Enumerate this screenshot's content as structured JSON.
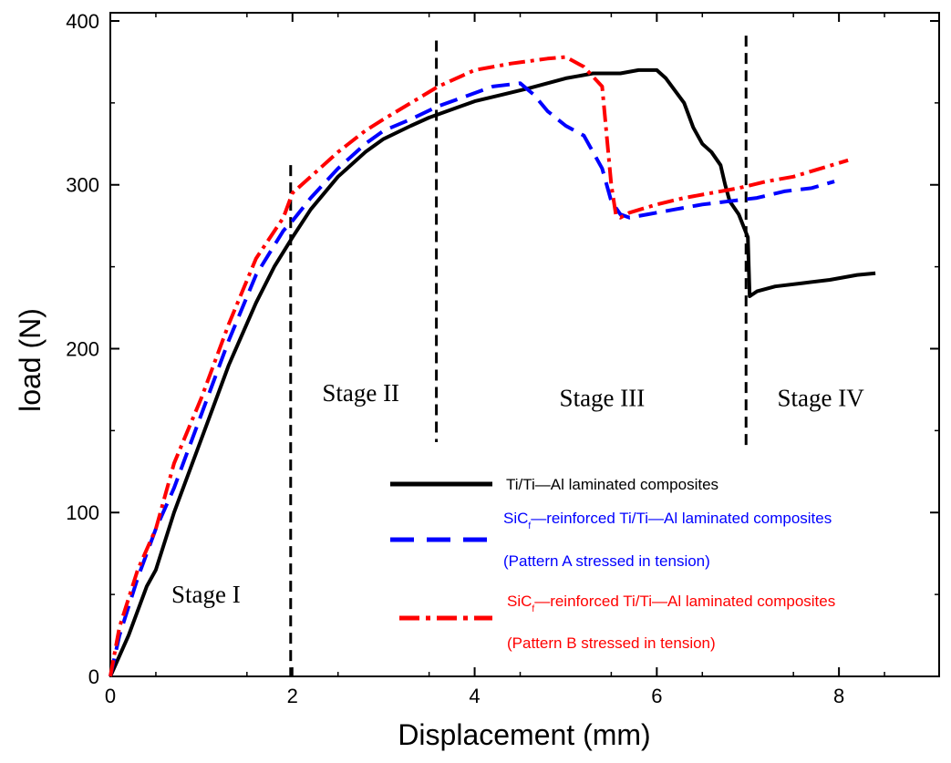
{
  "chart_data": {
    "type": "line",
    "title": "",
    "xlabel": "Displacement (mm)",
    "ylabel": "load (N)",
    "xlim": [
      0,
      9.1
    ],
    "ylim": [
      0,
      405
    ],
    "xticks": [
      0,
      2,
      4,
      6,
      8
    ],
    "yticks": [
      0,
      100,
      200,
      300,
      400
    ],
    "grid": false,
    "colors": {
      "black": "#000000",
      "blue": "#0000ff",
      "red": "#ff0000"
    },
    "stage_lines": [
      {
        "x": 1.98,
        "y_top": 312,
        "y_bottom": 0
      },
      {
        "x": 3.58,
        "y_top": 388,
        "y_bottom": 143
      },
      {
        "x": 6.98,
        "y_top": 391,
        "y_bottom": 140
      }
    ],
    "stage_labels": [
      {
        "text": "Stage I",
        "x": 1.05,
        "y": 45
      },
      {
        "text": "Stage II",
        "x": 2.75,
        "y": 168
      },
      {
        "text": "Stage III",
        "x": 5.4,
        "y": 165
      },
      {
        "text": "Stage IV",
        "x": 7.8,
        "y": 165
      }
    ],
    "series": [
      {
        "name": "Ti/Ti—Al laminated composites",
        "color": "#000000",
        "style": "solid",
        "x": [
          0,
          0.2,
          0.4,
          0.5,
          0.7,
          1.0,
          1.3,
          1.6,
          1.8,
          2.0,
          2.2,
          2.5,
          2.8,
          3.0,
          3.3,
          3.5,
          3.8,
          4.0,
          4.3,
          4.6,
          5.0,
          5.3,
          5.6,
          5.8,
          6.0,
          6.1,
          6.3,
          6.4,
          6.5,
          6.6,
          6.7,
          6.75,
          6.8,
          6.9,
          6.95,
          7.0,
          7.02,
          7.1,
          7.3,
          7.6,
          7.9,
          8.2,
          8.4
        ],
        "y": [
          0,
          25,
          55,
          65,
          100,
          145,
          190,
          228,
          250,
          268,
          285,
          305,
          320,
          328,
          336,
          341,
          347,
          351,
          355,
          359,
          365,
          368,
          368,
          370,
          370,
          365,
          350,
          335,
          325,
          320,
          312,
          300,
          290,
          282,
          275,
          268,
          232,
          235,
          238,
          240,
          242,
          245,
          246
        ]
      },
      {
        "name": "SiC—reinforced Ti/Ti—Al laminated composites (Pattern A stressed in tension)",
        "color": "#0000ff",
        "style": "dash",
        "x": [
          0,
          0.1,
          0.3,
          0.5,
          0.7,
          1.0,
          1.3,
          1.6,
          1.9,
          2.0,
          2.2,
          2.5,
          2.8,
          3.0,
          3.3,
          3.6,
          3.9,
          4.2,
          4.5,
          4.65,
          4.8,
          5.0,
          5.2,
          5.4,
          5.5,
          5.6,
          5.7,
          5.9,
          6.2,
          6.5,
          6.8,
          7.1,
          7.4,
          7.7,
          7.95
        ],
        "y": [
          0,
          25,
          60,
          90,
          115,
          160,
          205,
          245,
          272,
          278,
          292,
          310,
          325,
          333,
          340,
          348,
          354,
          360,
          362,
          355,
          345,
          336,
          330,
          310,
          290,
          282,
          280,
          282,
          285,
          288,
          290,
          292,
          296,
          298,
          302
        ]
      },
      {
        "name": "SiC—reinforced Ti/Ti—Al laminated composites (Pattern B stressed in tension)",
        "color": "#ff0000",
        "style": "dashdot",
        "x": [
          0,
          0.1,
          0.3,
          0.5,
          0.7,
          1.0,
          1.3,
          1.6,
          1.9,
          2.0,
          2.2,
          2.5,
          2.8,
          3.0,
          3.3,
          3.6,
          4.0,
          4.4,
          4.8,
          5.0,
          5.2,
          5.4,
          5.5,
          5.55,
          5.6,
          5.7,
          6.0,
          6.3,
          6.6,
          6.9,
          7.2,
          7.5,
          7.8,
          8.1
        ],
        "y": [
          0,
          30,
          65,
          90,
          130,
          170,
          215,
          255,
          280,
          295,
          305,
          320,
          333,
          340,
          350,
          360,
          370,
          374,
          377,
          378,
          372,
          360,
          300,
          282,
          280,
          283,
          288,
          292,
          295,
          298,
          302,
          305,
          310,
          315
        ]
      }
    ],
    "legend": {
      "position": "lower-right",
      "entries": [
        {
          "lines": [
            {
              "main": "Ti/Ti—Al laminated composites",
              "sub": ""
            }
          ],
          "color": "#000000",
          "style": "solid"
        },
        {
          "lines": [
            {
              "main": "SiC",
              "sub": "f",
              "rest": "—reinforced Ti/Ti—Al laminated composites"
            },
            {
              "main": "(Pattern A stressed in tension)"
            }
          ],
          "color": "#0000ff",
          "style": "dash"
        },
        {
          "lines": [
            {
              "main": "SiC",
              "sub": "f",
              "rest": "—reinforced Ti/Ti—Al laminated composites"
            },
            {
              "main": "(Pattern B stressed in tension)"
            }
          ],
          "color": "#ff0000",
          "style": "dashdot"
        }
      ]
    }
  }
}
